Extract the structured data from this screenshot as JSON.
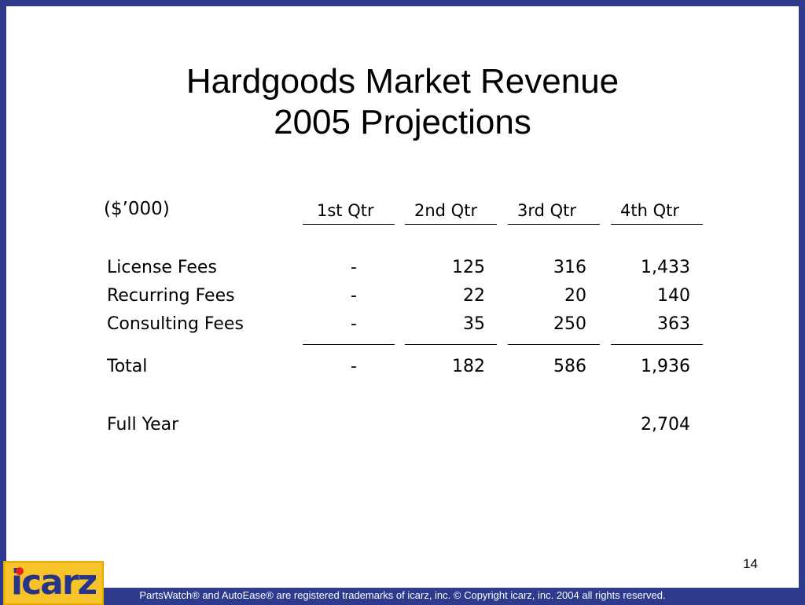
{
  "title": {
    "line1": "Hardgoods Market Revenue",
    "line2": "2005 Projections"
  },
  "table": {
    "units": "($’000)",
    "columns": [
      "1st Qtr",
      "2nd Qtr",
      "3rd Qtr",
      "4th Qtr"
    ],
    "rows": [
      {
        "label": "License Fees",
        "values": [
          "-",
          "125",
          "316",
          "1,433"
        ]
      },
      {
        "label": "Recurring Fees",
        "values": [
          "-",
          "22",
          "20",
          "140"
        ]
      },
      {
        "label": "Consulting Fees",
        "values": [
          "-",
          "35",
          "250",
          "363"
        ]
      }
    ],
    "total": {
      "label": "Total",
      "values": [
        "-",
        "182",
        "586",
        "1,936"
      ]
    },
    "full_year": {
      "label": "Full Year",
      "value": "2,704"
    }
  },
  "page_number": "14",
  "logo": {
    "text": "icarz"
  },
  "footer": "PartsWatch® and AutoEase® are registered trademarks of icarz, inc. © Copyright icarz, inc. 2004 all rights reserved."
}
